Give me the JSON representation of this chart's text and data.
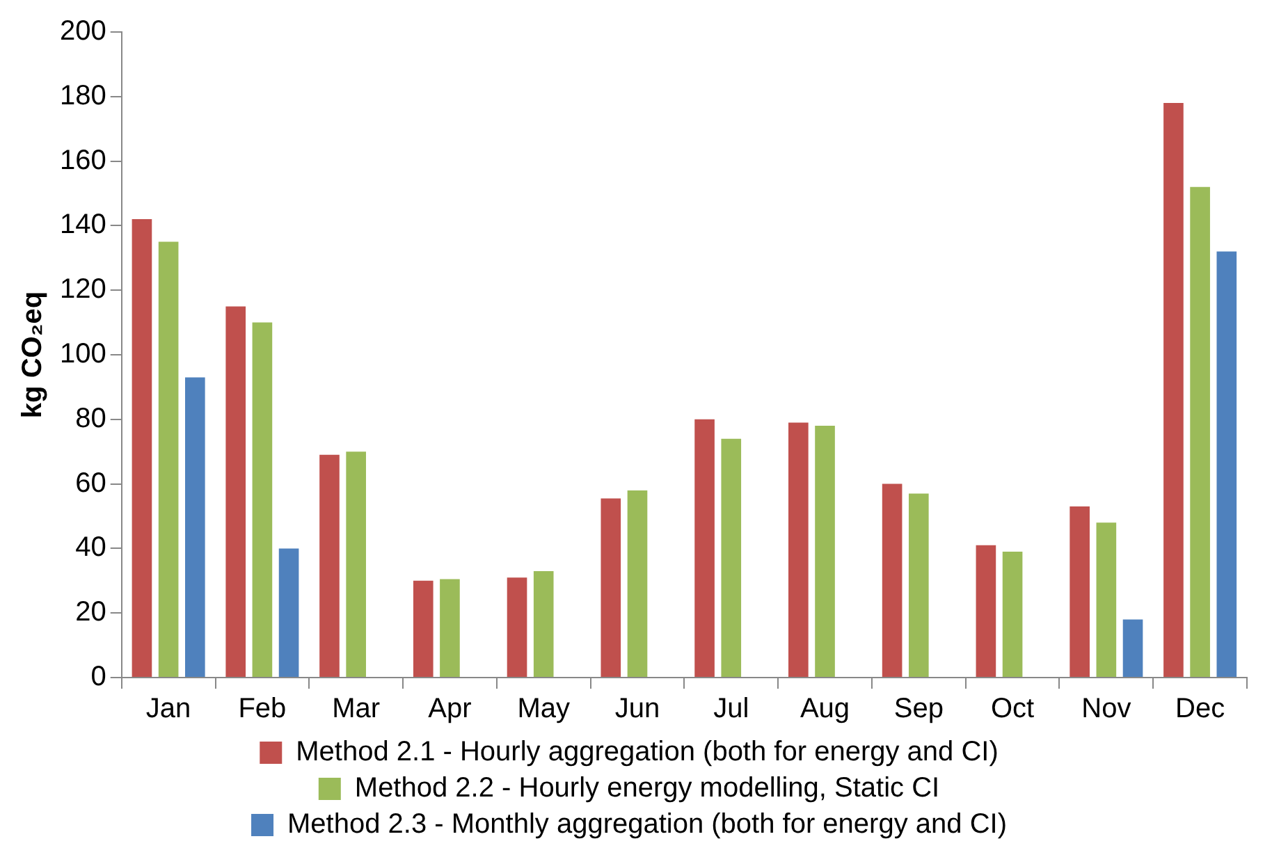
{
  "chart_data": {
    "type": "bar",
    "ylabel": "kg CO₂eq",
    "categories": [
      "Jan",
      "Feb",
      "Mar",
      "Apr",
      "May",
      "Jun",
      "Jul",
      "Aug",
      "Sep",
      "Oct",
      "Nov",
      "Dec"
    ],
    "series": [
      {
        "name": "Method 2.1 - Hourly aggregation (both for energy and CI)",
        "color": "#c0504d",
        "values": [
          142,
          115,
          69,
          30,
          31,
          55.5,
          80,
          79,
          60,
          41,
          53,
          178
        ]
      },
      {
        "name": "Method 2.2 - Hourly energy modelling, Static CI",
        "color": "#9bbb59",
        "values": [
          135,
          110,
          70,
          30.5,
          33,
          58,
          74,
          78,
          57,
          39,
          48,
          152
        ]
      },
      {
        "name": "Method 2.3 - Monthly aggregation (both for energy and CI)",
        "color": "#4f81bd",
        "values": [
          93,
          40,
          null,
          null,
          null,
          null,
          null,
          null,
          null,
          null,
          18,
          132
        ]
      }
    ],
    "ylim": [
      0,
      200
    ],
    "yticks": [
      0,
      20,
      40,
      60,
      80,
      100,
      120,
      140,
      160,
      180,
      200
    ],
    "grid": false,
    "legend": "bottom"
  }
}
